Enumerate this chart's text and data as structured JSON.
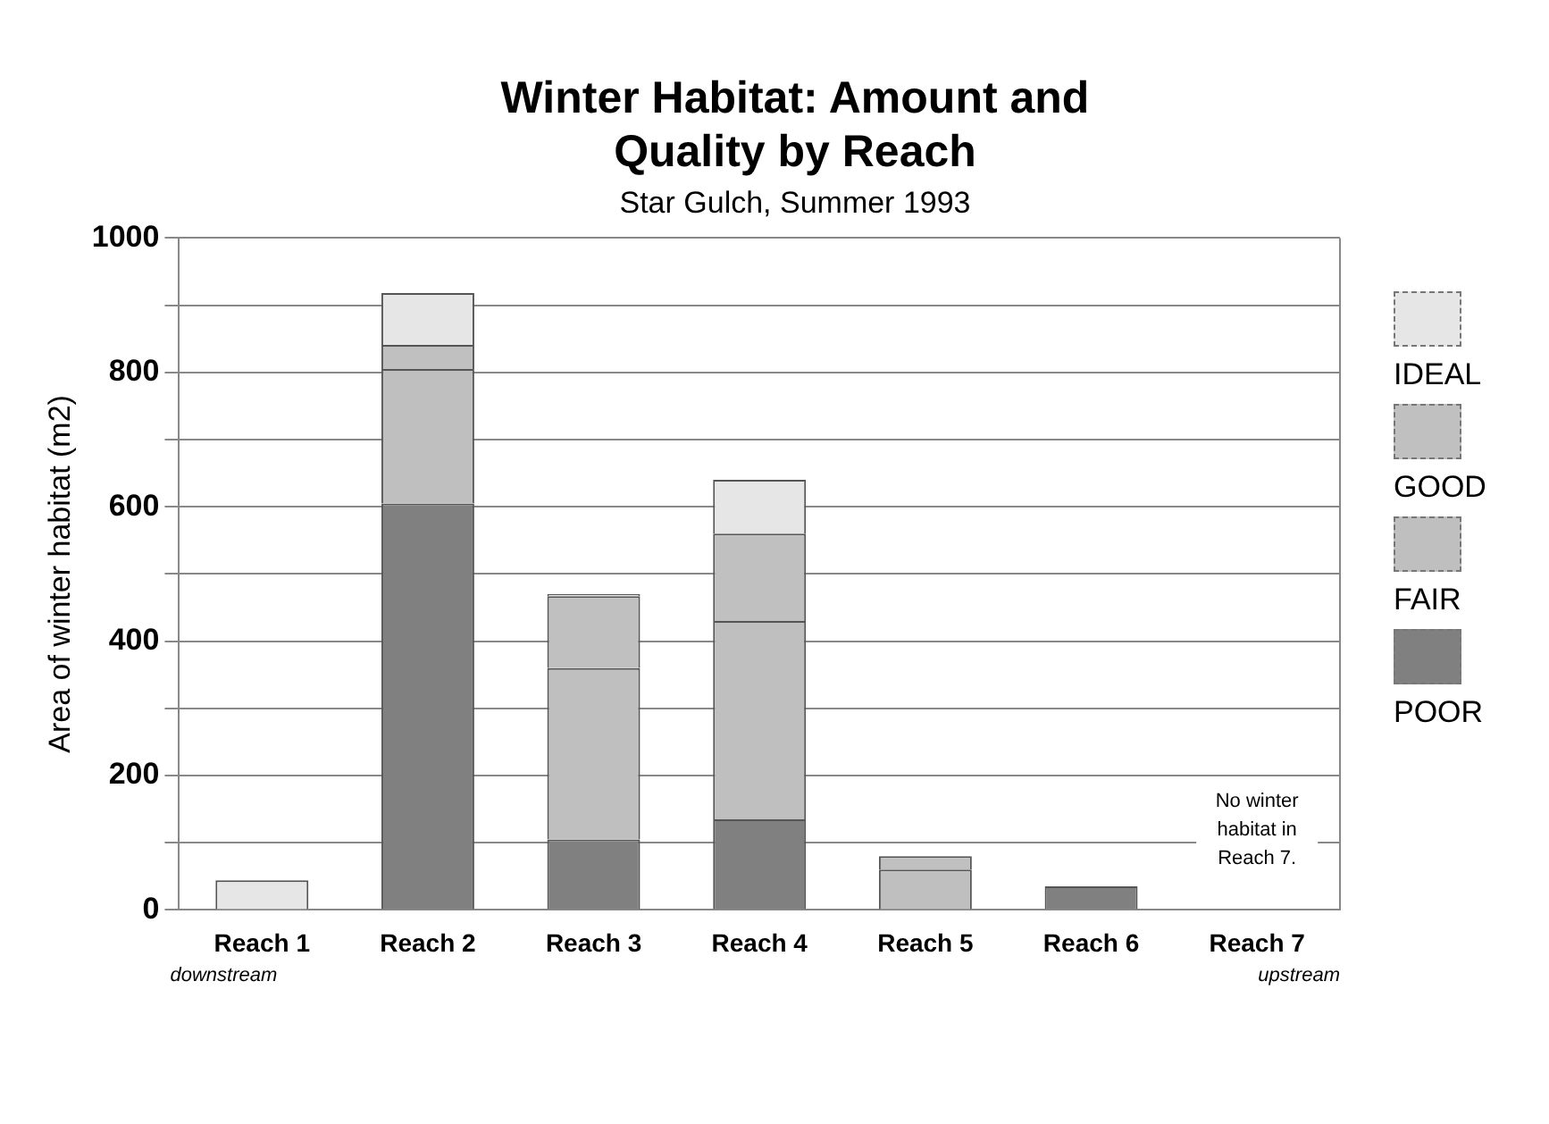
{
  "chart_data": {
    "type": "bar",
    "title": "Winter Habitat: Amount and Quality by Reach",
    "subtitle": "Star Gulch, Summer 1993",
    "ylabel": "Area of winter habitat (m2)",
    "categories": [
      "Reach 1",
      "Reach 2",
      "Reach 3",
      "Reach 4",
      "Reach 5",
      "Reach 6",
      "Reach 7"
    ],
    "series": [
      {
        "name": "POOR",
        "color": "#808080",
        "values": [
          0,
          605,
          105,
          135,
          0,
          35,
          0
        ]
      },
      {
        "name": "FAIR",
        "color": "#bfbfbf",
        "values": [
          0,
          200,
          255,
          295,
          60,
          0,
          0
        ]
      },
      {
        "name": "GOOD",
        "color": "#c0c0c0",
        "values": [
          0,
          36,
          107,
          130,
          20,
          0,
          0
        ]
      },
      {
        "name": "IDEAL",
        "color": "#e6e6e6",
        "values": [
          44,
          77,
          3,
          80,
          0,
          0,
          0
        ]
      }
    ],
    "stacked": true,
    "ylim": [
      0,
      1000
    ],
    "yticks": [
      0,
      {
        "value": 100,
        "label": null
      },
      200,
      {
        "value": 300,
        "label": null
      },
      400,
      {
        "value": 500,
        "label": null
      },
      600,
      {
        "value": 700,
        "label": null
      },
      800,
      {
        "value": 900,
        "label": null
      },
      1000
    ],
    "grid": "y",
    "legend": "right",
    "annotations": [
      "downstream",
      "upstream",
      "No winter habitat in Reach 7."
    ]
  }
}
